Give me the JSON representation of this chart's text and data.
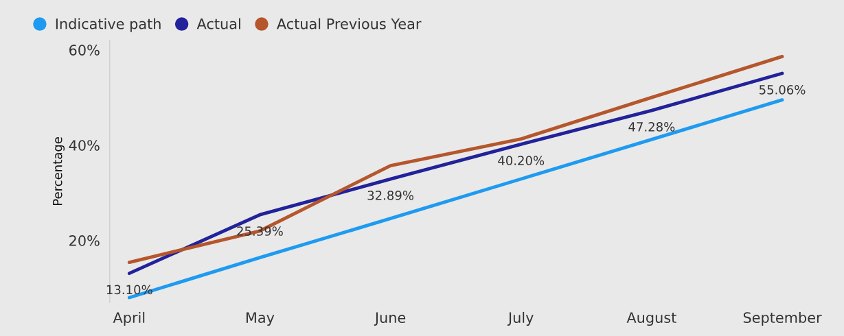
{
  "chart_data": {
    "type": "line",
    "ylabel": "Percentage",
    "categories": [
      "April",
      "May",
      "June",
      "July",
      "August",
      "September"
    ],
    "series": [
      {
        "name": "Indicative path",
        "color": "#1e9bf0",
        "values": [
          8.0,
          16.4,
          24.6,
          32.9,
          41.2,
          49.5
        ]
      },
      {
        "name": "Actual",
        "color": "#22229a",
        "values": [
          13.1,
          25.39,
          32.89,
          40.2,
          47.28,
          55.06
        ],
        "value_labels": [
          "13.10%",
          "25.39%",
          "32.89%",
          "40.20%",
          "47.28%",
          "55.06%"
        ]
      },
      {
        "name": "Actual Previous Year",
        "color": "#b5562c",
        "values": [
          15.4,
          22.0,
          35.7,
          41.3,
          50.0,
          58.6
        ]
      }
    ],
    "ylim": [
      7,
      62
    ],
    "yticks": [
      {
        "value": 20,
        "label": "20%"
      },
      {
        "value": 40,
        "label": "40%"
      },
      {
        "value": 60,
        "label": "60%"
      }
    ],
    "grid": false,
    "legend": "top left",
    "marker": "none",
    "line_style": "solid"
  }
}
